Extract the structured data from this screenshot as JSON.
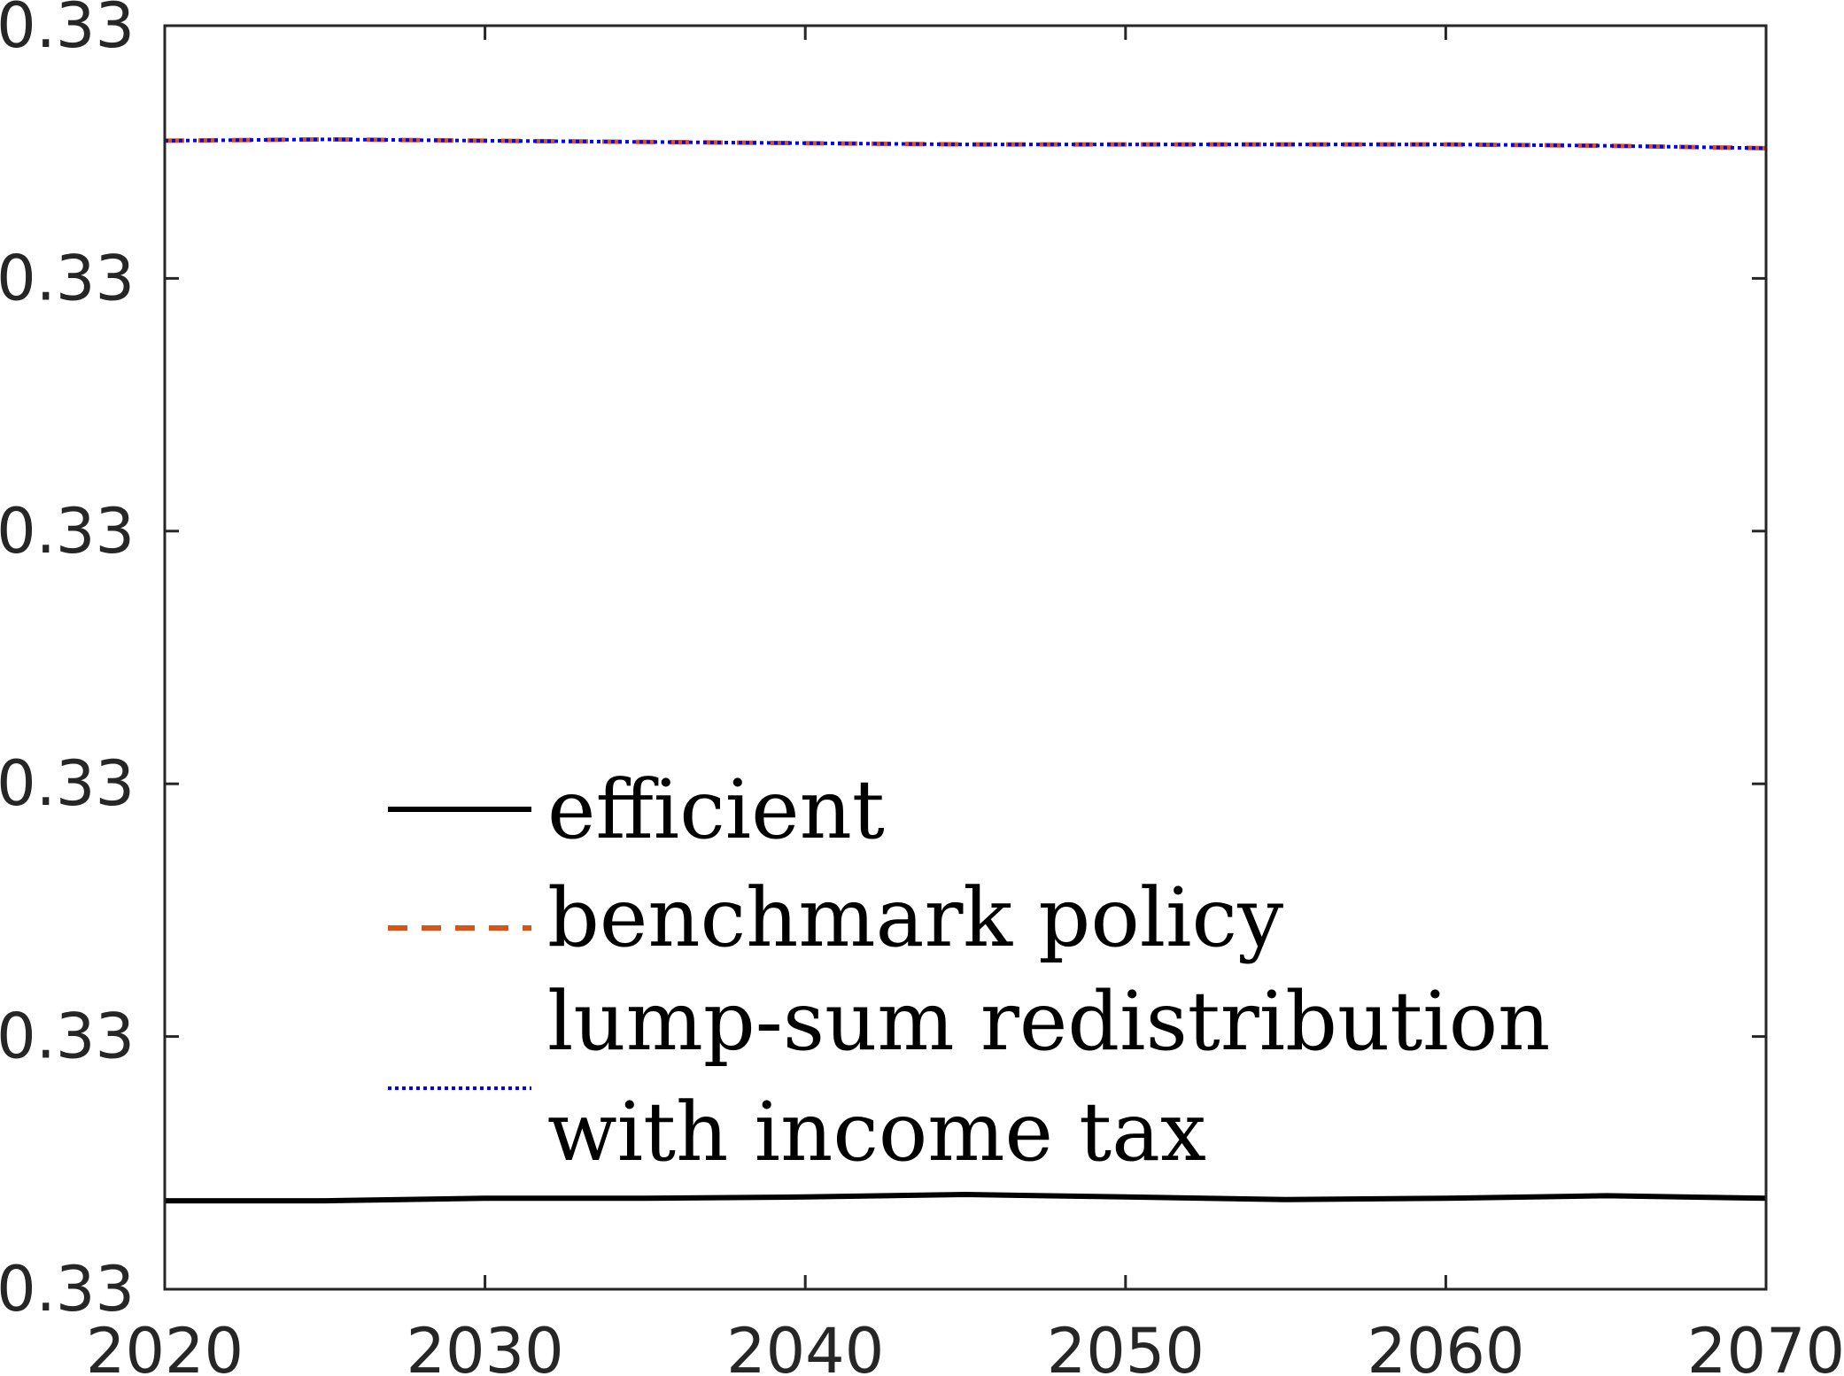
{
  "chart_data": {
    "type": "line",
    "title": "",
    "xlabel": "",
    "ylabel": "",
    "xlim": [
      2020,
      2070
    ],
    "ylim": [
      0.32995,
      0.33005
    ],
    "xticks": [
      2020,
      2030,
      2040,
      2050,
      2060,
      2070
    ],
    "xtick_labels": [
      "2020",
      "2030",
      "2040",
      "2050",
      "2060",
      "2070"
    ],
    "yticks": [
      0.32995,
      0.32997,
      0.32999,
      0.33001,
      0.33003,
      0.33005
    ],
    "ytick_labels": [
      "0.33",
      "0.33",
      "0.33",
      "0.33",
      "0.33",
      "0.33"
    ],
    "grid": false,
    "legend_position": "lower-center",
    "series": [
      {
        "name": "efficient",
        "color": "#000000",
        "style": "solid",
        "x": [
          2020,
          2025,
          2030,
          2035,
          2040,
          2045,
          2050,
          2055,
          2060,
          2065,
          2070
        ],
        "y": [
          0.329957,
          0.329957,
          0.3299572,
          0.3299572,
          0.3299573,
          0.3299575,
          0.3299573,
          0.3299571,
          0.3299572,
          0.3299574,
          0.3299572
        ]
      },
      {
        "name": "benchmark policy",
        "color": "#D95319",
        "style": "dashed",
        "x": [
          2020,
          2025,
          2030,
          2035,
          2040,
          2045,
          2050,
          2055,
          2060,
          2065,
          2070
        ],
        "y": [
          0.3300409,
          0.330041,
          0.3300409,
          0.3300408,
          0.3300407,
          0.3300406,
          0.3300406,
          0.3300406,
          0.3300406,
          0.3300405,
          0.3300403
        ]
      },
      {
        "name_lines": [
          "lump-sum redistribution",
          "with income tax"
        ],
        "color": "#0000FF",
        "style": "dotted",
        "x": [
          2020,
          2025,
          2030,
          2035,
          2040,
          2045,
          2050,
          2055,
          2060,
          2065,
          2070
        ],
        "y": [
          0.3300409,
          0.330041,
          0.3300409,
          0.3300408,
          0.3300407,
          0.3300406,
          0.3300406,
          0.3300406,
          0.3300406,
          0.3300405,
          0.3300403
        ]
      }
    ]
  }
}
